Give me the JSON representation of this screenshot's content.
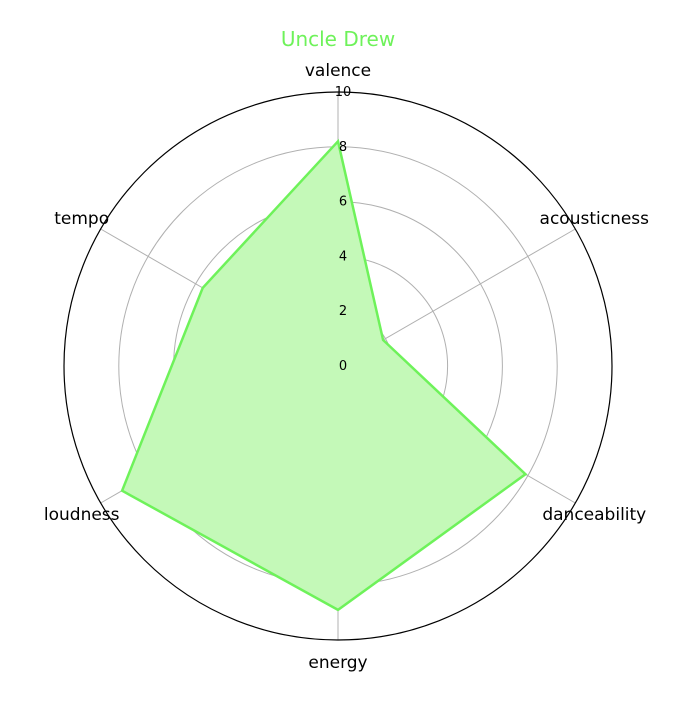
{
  "chart_data": {
    "type": "radar",
    "title": "Uncle Drew",
    "axes": [
      "valence",
      "acousticness",
      "danceability",
      "energy",
      "loudness",
      "tempo"
    ],
    "series": [
      {
        "name": "",
        "values": [
          8.2,
          1.9,
          7.9,
          8.9,
          9.1,
          5.7
        ]
      }
    ],
    "rlim": [
      0,
      10
    ],
    "rticks": [
      "0",
      "2",
      "4",
      "6",
      "8",
      "10"
    ],
    "grid": true,
    "colors": {
      "line": "#6ef25a",
      "fill": "#c4f9b8",
      "title": "#6ef25a",
      "grid": "#b0b0b0",
      "outer": "#000000"
    }
  }
}
